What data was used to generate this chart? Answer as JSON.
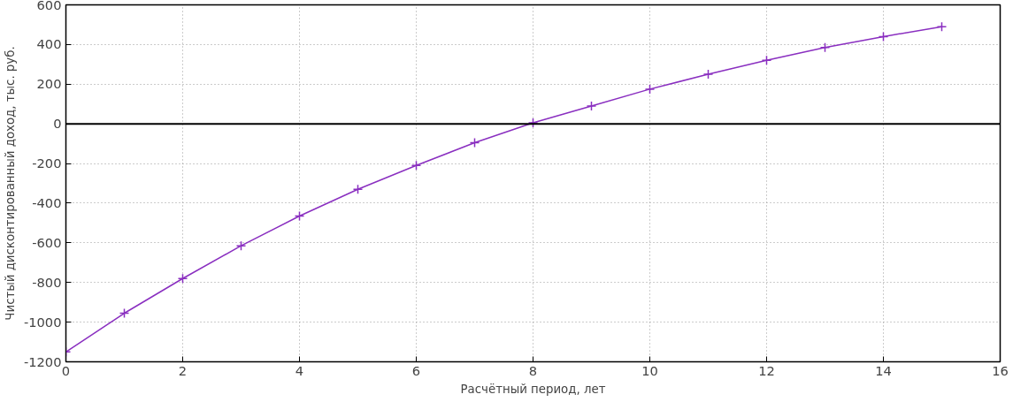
{
  "chart_data": {
    "type": "line",
    "xlabel": "Расчётный период, лет",
    "ylabel": "Чистый дисконтированный доход, тыс. руб.",
    "x": [
      0,
      1,
      2,
      3,
      4,
      5,
      6,
      7,
      8,
      9,
      10,
      11,
      12,
      13,
      14,
      15
    ],
    "series": [
      {
        "color": "#8a2fc0",
        "values": [
          -1150,
          -955,
          -780,
          -615,
          -465,
          -330,
          -210,
          -95,
          5,
          90,
          175,
          250,
          320,
          385,
          440,
          490
        ]
      }
    ],
    "xlim": [
      0,
      16
    ],
    "xticks": [
      0,
      2,
      4,
      6,
      8,
      10,
      12,
      14,
      16
    ],
    "ylim": [
      -1200,
      600
    ],
    "yticks": [
      -1200,
      -1000,
      -800,
      -600,
      -400,
      -200,
      0,
      200,
      400,
      600
    ],
    "ref_lines": [
      {
        "axis": "y",
        "value": 0,
        "color": "#000000"
      }
    ],
    "grid": true,
    "marker": "cross",
    "line_style": "solid"
  }
}
